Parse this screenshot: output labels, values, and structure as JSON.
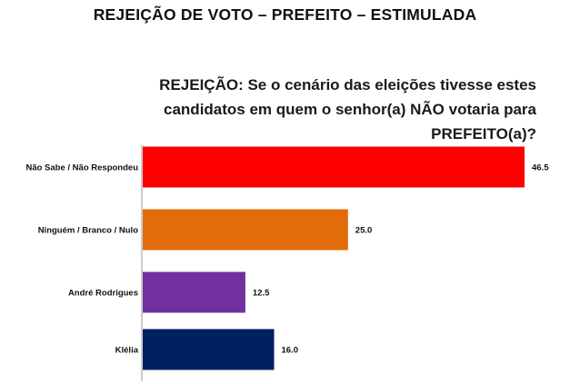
{
  "header": {
    "title": "REJEIÇÃO DE VOTO – PREFEITO – ESTIMULADA"
  },
  "question": {
    "lines": [
      "REJEIÇÃO: Se o cenário das eleições tivesse estes",
      "candidatos em quem o senhor(a) NÃO votaria para",
      "PREFEITO(a)?"
    ]
  },
  "chart_data": {
    "type": "bar",
    "orientation": "horizontal",
    "categories": [
      "Não Sabe / Não Respondeu",
      "Ninguém / Branco / Nulo",
      "André Rodrigues",
      "Klélia"
    ],
    "values": [
      46.5,
      25.0,
      12.5,
      16.0
    ],
    "value_labels": [
      "46.5",
      "25.0",
      "12.5",
      "16.0"
    ],
    "colors": [
      "#ff0000",
      "#e36c0a",
      "#7030a0",
      "#002060"
    ],
    "xlim": [
      0,
      46.5
    ],
    "grid": false,
    "legend": "none"
  }
}
